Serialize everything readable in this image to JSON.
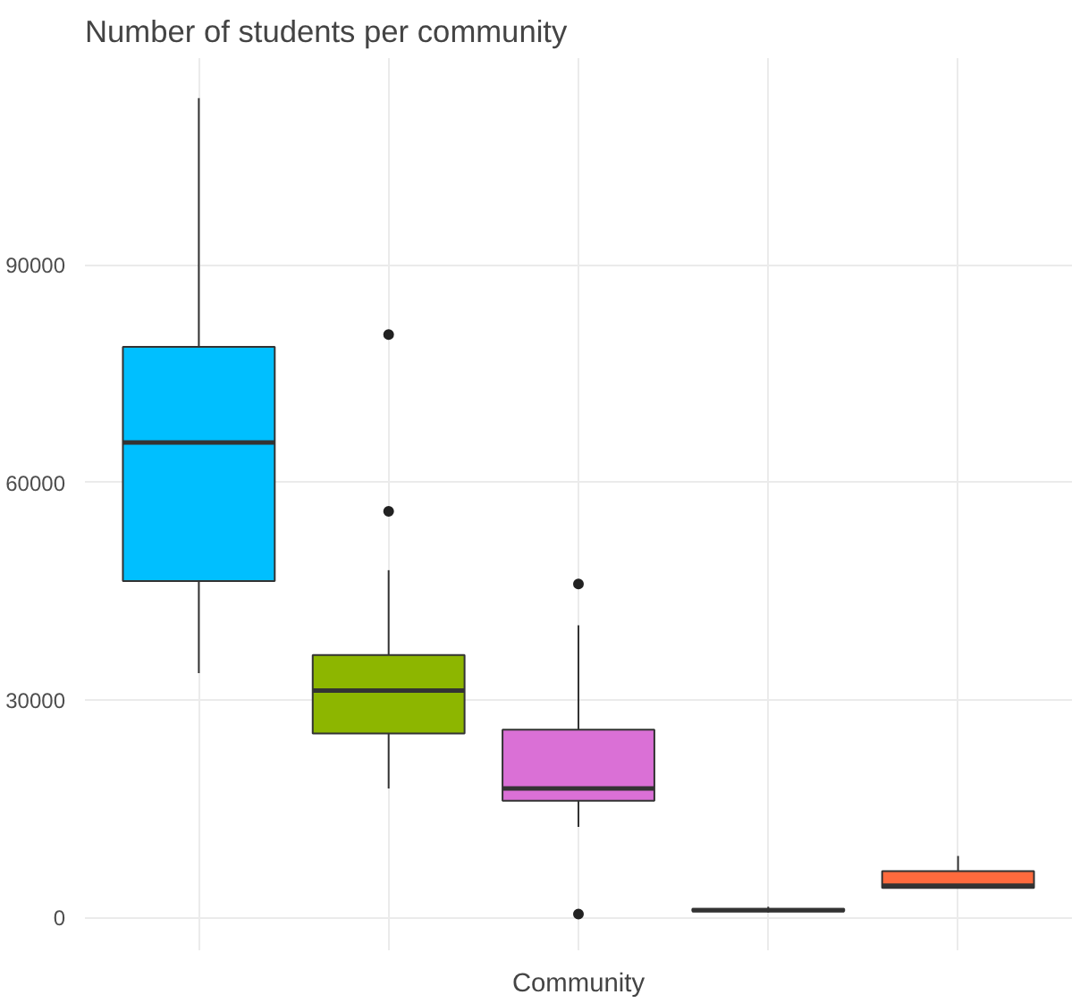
{
  "chart_data": {
    "type": "box",
    "title": "Number of students per community",
    "xlabel": "Community",
    "categories": [
      null,
      null,
      null,
      null,
      null
    ],
    "colors": [
      "#00bfff",
      "#8db600",
      "#da70d6",
      "#7f7f7f",
      "#ff6a3d"
    ],
    "boxes": [
      {
        "low": 33700,
        "q1": 46400,
        "median": 65500,
        "q3": 78700,
        "high": 113000
      },
      {
        "low": 17800,
        "q1": 25400,
        "median": 31300,
        "q3": 36200,
        "high": 47900,
        "outliers": [
          56000,
          80400
        ]
      },
      {
        "low": 12500,
        "q1": 16100,
        "median": 17800,
        "q3": 25900,
        "high": 40300,
        "outliers": [
          500,
          46000
        ]
      },
      {
        "low": 700,
        "q1": 900,
        "median": 1000,
        "q3": 1200,
        "high": 1500
      },
      {
        "low": 4100,
        "q1": 4100,
        "median": 4400,
        "q3": 6400,
        "high": 8500
      }
    ],
    "ylim": [
      -4500,
      118500
    ],
    "yticks": [
      0,
      30000,
      60000,
      90000
    ],
    "grid": true
  }
}
